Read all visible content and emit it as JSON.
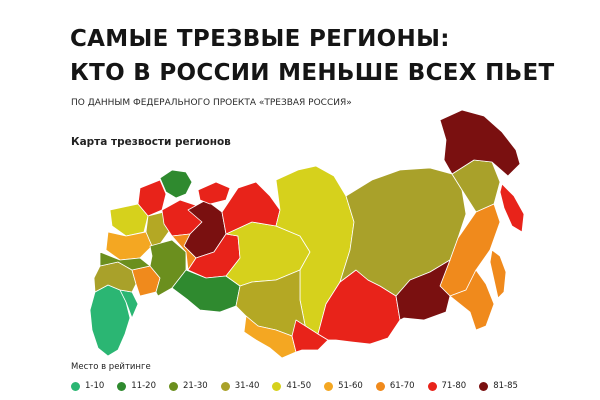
{
  "header": {
    "title_line1": "САМЫЕ ТРЕЗВЫЕ РЕГИОНЫ:",
    "title_line2": "КТО В РОССИИ МЕНЬШЕ ВСЕХ ПЬЕТ",
    "subtitle": "ПО ДАННЫМ ФЕДЕРАЛЬНОГО ПРОЕКТА «ТРЕЗВАЯ РОССИЯ»"
  },
  "map": {
    "title": "Карта трезвости регионов",
    "regions": [
      {
        "name": "north-caucasus",
        "color": "#2bb673"
      },
      {
        "name": "kalmykia",
        "color": "#2bb673"
      },
      {
        "name": "south",
        "color": "#a9a12a"
      },
      {
        "name": "lower-volga",
        "color": "#f08a1c"
      },
      {
        "name": "kola-peninsula",
        "color": "#2f8a2f"
      },
      {
        "name": "karelia",
        "color": "#e8231a"
      },
      {
        "name": "northwest",
        "color": "#d6d11c"
      },
      {
        "name": "central-a",
        "color": "#f4a722"
      },
      {
        "name": "central-b",
        "color": "#6b8f1e"
      },
      {
        "name": "central-c",
        "color": "#b4a824"
      },
      {
        "name": "arkhangelsk",
        "color": "#e8231a"
      },
      {
        "name": "komi",
        "color": "#7a1010"
      },
      {
        "name": "nenets",
        "color": "#e8231a"
      },
      {
        "name": "volga",
        "color": "#6b8f1e"
      },
      {
        "name": "volga-east",
        "color": "#f08a1c"
      },
      {
        "name": "urals",
        "color": "#e8231a"
      },
      {
        "name": "south-urals",
        "color": "#2f8a2f"
      },
      {
        "name": "khmao",
        "color": "#d6d11c"
      },
      {
        "name": "yamal",
        "color": "#e8231a"
      },
      {
        "name": "krasnoyarsk",
        "color": "#d6d11c"
      },
      {
        "name": "south-siberia-west",
        "color": "#b4a824"
      },
      {
        "name": "novosibirsk",
        "color": "#f4a722"
      },
      {
        "name": "tuva-khakassia",
        "color": "#e8231a"
      },
      {
        "name": "irkutsk",
        "color": "#e8231a"
      },
      {
        "name": "yakutia",
        "color": "#a9a12a"
      },
      {
        "name": "magadan",
        "color": "#a9a12a"
      },
      {
        "name": "chukotka",
        "color": "#7a1010"
      },
      {
        "name": "kamchatka",
        "color": "#e8231a"
      },
      {
        "name": "khabarovsk",
        "color": "#f08a1c"
      },
      {
        "name": "amur",
        "color": "#7a1010"
      },
      {
        "name": "primorye",
        "color": "#f08a1c"
      },
      {
        "name": "sakhalin",
        "color": "#f08a1c"
      }
    ]
  },
  "legend": {
    "title": "Место в рейтинге",
    "items": [
      {
        "label": "1-10",
        "color": "#2bb673"
      },
      {
        "label": "11-20",
        "color": "#2f8a2f"
      },
      {
        "label": "21-30",
        "color": "#6b8f1e"
      },
      {
        "label": "31-40",
        "color": "#a9a12a"
      },
      {
        "label": "41-50",
        "color": "#d6d11c"
      },
      {
        "label": "51-60",
        "color": "#f4a722"
      },
      {
        "label": "61-70",
        "color": "#f08a1c"
      },
      {
        "label": "71-80",
        "color": "#e8231a"
      },
      {
        "label": "81-85",
        "color": "#7a1010"
      }
    ]
  }
}
